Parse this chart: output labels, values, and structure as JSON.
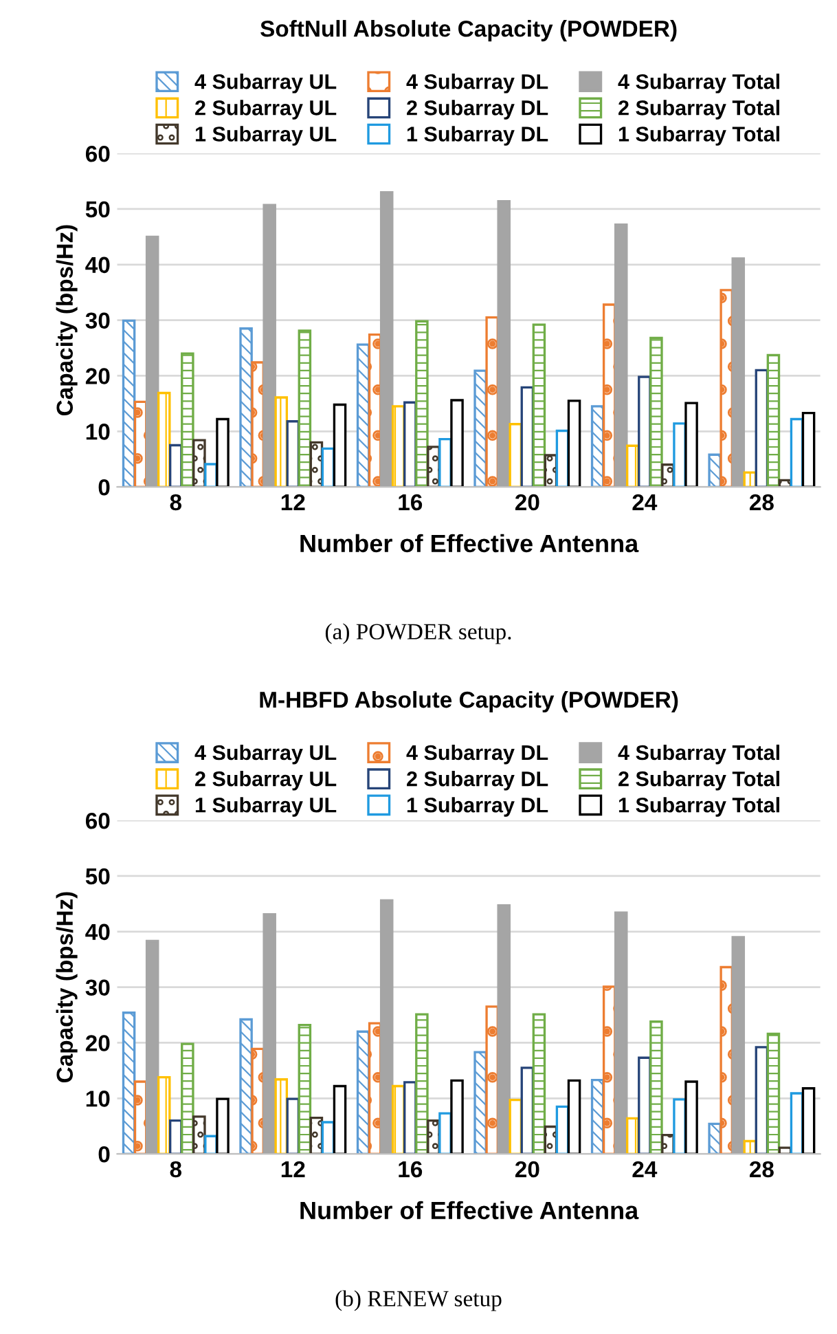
{
  "chart_data": [
    {
      "type": "bar",
      "title": "SoftNull Absolute Capacity (POWDER)",
      "xlabel": "Number of Effective Antenna",
      "ylabel": "Capacity (bps/Hz)",
      "categories": [
        "8",
        "12",
        "16",
        "20",
        "24",
        "28"
      ],
      "ylim": [
        0,
        60
      ],
      "yticks": [
        0,
        10,
        20,
        30,
        40,
        50,
        60
      ],
      "grid": "y",
      "legend": "top",
      "annotations": [
        "(a) POWDER setup."
      ],
      "series": [
        {
          "name": "4 Subarray UL",
          "color": "#5b9bd5",
          "values": [
            29.9,
            28.5,
            25.6,
            20.9,
            14.5,
            5.8
          ]
        },
        {
          "name": "4 Subarray DL",
          "color": "#ed7d31",
          "values": [
            15.3,
            22.4,
            27.4,
            30.5,
            32.8,
            35.4
          ]
        },
        {
          "name": "4 Subarray Total",
          "color": "#a5a5a5",
          "values": [
            45.0,
            50.7,
            53.0,
            51.4,
            47.2,
            41.1
          ]
        },
        {
          "name": "2 Subarray UL",
          "color": "#ffc000",
          "values": [
            16.9,
            16.1,
            14.5,
            11.3,
            7.4,
            2.6
          ]
        },
        {
          "name": "2 Subarray DL",
          "color": "#264478",
          "values": [
            7.5,
            11.8,
            15.2,
            17.9,
            19.8,
            21.0
          ]
        },
        {
          "name": "2 Subarray Total",
          "color": "#70ad47",
          "values": [
            24.0,
            28.1,
            29.8,
            29.2,
            26.8,
            23.7
          ]
        },
        {
          "name": "1 Subarray UL",
          "color": "#43382b",
          "values": [
            8.4,
            8.0,
            7.2,
            5.7,
            4.0,
            1.2
          ]
        },
        {
          "name": "1 Subarray DL",
          "color": "#1f9ae0",
          "values": [
            4.1,
            6.9,
            8.6,
            10.1,
            11.4,
            12.2
          ]
        },
        {
          "name": "1 Subarray Total",
          "color": "#000000",
          "values": [
            12.2,
            14.8,
            15.6,
            15.5,
            15.1,
            13.3
          ]
        }
      ]
    },
    {
      "type": "bar",
      "title": "M-HBFD Absolute Capacity (POWDER)",
      "xlabel": "Number of Effective Antenna",
      "ylabel": "Capacity (bps/Hz)",
      "categories": [
        "8",
        "12",
        "16",
        "20",
        "24",
        "28"
      ],
      "ylim": [
        0,
        60
      ],
      "yticks": [
        0,
        10,
        20,
        30,
        40,
        50,
        60
      ],
      "grid": "y",
      "legend": "top",
      "annotations": [
        "(b) RENEW setup"
      ],
      "series": [
        {
          "name": "4 Subarray UL",
          "color": "#5b9bd5",
          "values": [
            25.4,
            24.2,
            22.0,
            18.3,
            13.3,
            5.4
          ]
        },
        {
          "name": "4 Subarray DL",
          "color": "#ed7d31",
          "values": [
            13.0,
            18.9,
            23.5,
            26.5,
            30.1,
            33.6
          ]
        },
        {
          "name": "4 Subarray Total",
          "color": "#a5a5a5",
          "values": [
            38.3,
            43.1,
            45.6,
            44.7,
            43.4,
            39.0
          ]
        },
        {
          "name": "2 Subarray UL",
          "color": "#ffc000",
          "values": [
            13.8,
            13.4,
            12.2,
            9.7,
            6.4,
            2.3
          ]
        },
        {
          "name": "2 Subarray DL",
          "color": "#264478",
          "values": [
            6.0,
            9.9,
            12.9,
            15.5,
            17.3,
            19.2
          ]
        },
        {
          "name": "2 Subarray Total",
          "color": "#70ad47",
          "values": [
            19.8,
            23.2,
            25.1,
            25.1,
            23.8,
            21.6
          ]
        },
        {
          "name": "1 Subarray UL",
          "color": "#43382b",
          "values": [
            6.7,
            6.5,
            6.0,
            4.9,
            3.4,
            1.1
          ]
        },
        {
          "name": "1 Subarray DL",
          "color": "#1f9ae0",
          "values": [
            3.2,
            5.7,
            7.3,
            8.5,
            9.8,
            10.9
          ]
        },
        {
          "name": "1 Subarray Total",
          "color": "#000000",
          "values": [
            9.9,
            12.2,
            13.2,
            13.2,
            13.0,
            11.8
          ]
        }
      ]
    }
  ]
}
